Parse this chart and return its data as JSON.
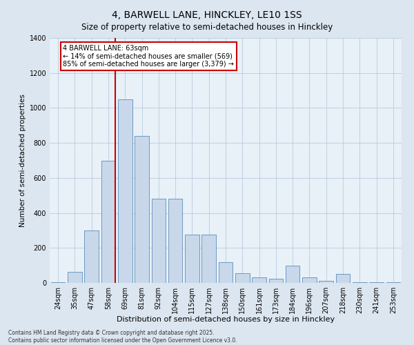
{
  "title": "4, BARWELL LANE, HINCKLEY, LE10 1SS",
  "subtitle": "Size of property relative to semi-detached houses in Hinckley",
  "xlabel": "Distribution of semi-detached houses by size in Hinckley",
  "ylabel": "Number of semi-detached properties",
  "categories": [
    "24sqm",
    "35sqm",
    "47sqm",
    "58sqm",
    "69sqm",
    "81sqm",
    "92sqm",
    "104sqm",
    "115sqm",
    "127sqm",
    "138sqm",
    "150sqm",
    "161sqm",
    "173sqm",
    "184sqm",
    "196sqm",
    "207sqm",
    "218sqm",
    "230sqm",
    "241sqm",
    "253sqm"
  ],
  "values": [
    5,
    65,
    300,
    700,
    1050,
    840,
    480,
    480,
    275,
    275,
    120,
    55,
    30,
    25,
    100,
    30,
    10,
    50,
    5,
    5,
    5
  ],
  "bar_color": "#c8d8ea",
  "bar_edge_color": "#5b8db8",
  "marker_bar_index": 3,
  "marker_label": "4 BARWELL LANE: 63sqm",
  "annotation_line1": "← 14% of semi-detached houses are smaller (569)",
  "annotation_line2": "85% of semi-detached houses are larger (3,379) →",
  "annotation_box_facecolor": "#ffffff",
  "annotation_box_edgecolor": "#cc0000",
  "marker_line_color": "#cc0000",
  "ylim": [
    0,
    1400
  ],
  "yticks": [
    0,
    200,
    400,
    600,
    800,
    1000,
    1200,
    1400
  ],
  "bg_color": "#dce6f0",
  "plot_bg_color": "#e8f0f8",
  "grid_color": "#b0c4d8",
  "footer": "Contains HM Land Registry data © Crown copyright and database right 2025.\nContains public sector information licensed under the Open Government Licence v3.0.",
  "title_fontsize": 10,
  "subtitle_fontsize": 8.5,
  "tick_fontsize": 7,
  "xlabel_fontsize": 8,
  "ylabel_fontsize": 7.5,
  "footer_fontsize": 5.5,
  "annotation_fontsize": 7
}
